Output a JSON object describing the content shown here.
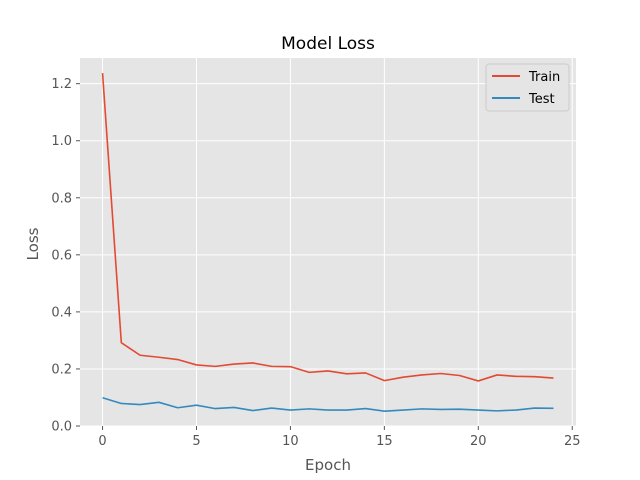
{
  "chart_data": {
    "type": "line",
    "title": "Model Loss",
    "xlabel": "Epoch",
    "ylabel": "Loss",
    "xlim": [
      -1.2,
      25.2
    ],
    "ylim": [
      0.0,
      1.29
    ],
    "xticks": [
      0,
      5,
      10,
      15,
      20,
      25
    ],
    "yticks": [
      0.0,
      0.2,
      0.4,
      0.6,
      0.8,
      1.0,
      1.2
    ],
    "grid": true,
    "legend_position": "top-right",
    "background": "#e5e5e5",
    "x": [
      0,
      1,
      2,
      3,
      4,
      5,
      6,
      7,
      8,
      9,
      10,
      11,
      12,
      13,
      14,
      15,
      16,
      17,
      18,
      19,
      20,
      21,
      22,
      23,
      24
    ],
    "series": [
      {
        "name": "Train",
        "color": "#e24a33",
        "values": [
          1.237,
          0.292,
          0.248,
          0.241,
          0.233,
          0.214,
          0.209,
          0.217,
          0.221,
          0.209,
          0.208,
          0.188,
          0.193,
          0.183,
          0.186,
          0.159,
          0.171,
          0.179,
          0.184,
          0.177,
          0.158,
          0.179,
          0.174,
          0.173,
          0.168
        ]
      },
      {
        "name": "Test",
        "color": "#348abd",
        "values": [
          0.099,
          0.079,
          0.075,
          0.083,
          0.064,
          0.073,
          0.061,
          0.065,
          0.054,
          0.063,
          0.056,
          0.06,
          0.056,
          0.056,
          0.061,
          0.052,
          0.056,
          0.06,
          0.058,
          0.059,
          0.056,
          0.053,
          0.056,
          0.063,
          0.062
        ]
      }
    ]
  }
}
